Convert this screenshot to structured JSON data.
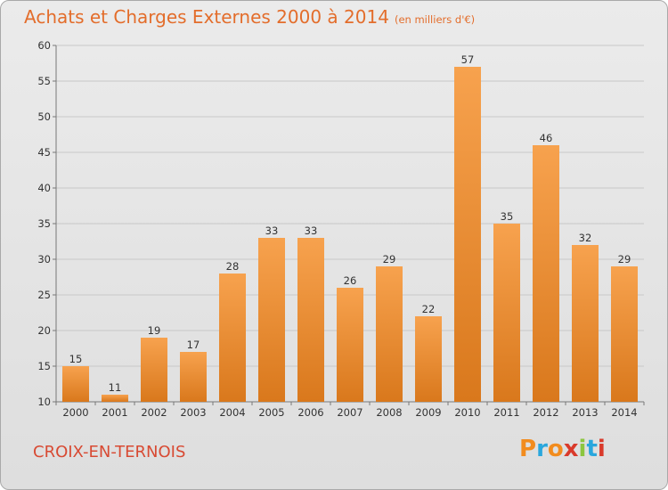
{
  "header": {
    "title": "Achats et Charges Externes 2000 à 2014",
    "unit": "(en milliers d'€)"
  },
  "footer": {
    "location": "CROIX-EN-TERNOIS",
    "logo_text": "Proxiti"
  },
  "colors": {
    "title": "#e36d2b",
    "location": "#d84a33",
    "bar_top": "#f7a24e",
    "bar_bottom": "#d9781c",
    "logo_letters": [
      "#f28c1e",
      "#2aa7dd",
      "#f28c1e",
      "#d93a2b",
      "#8cc63f",
      "#2aa7dd",
      "#d93a2b"
    ]
  },
  "chart_data": {
    "type": "bar",
    "categories": [
      "2000",
      "2001",
      "2002",
      "2003",
      "2004",
      "2005",
      "2006",
      "2007",
      "2008",
      "2009",
      "2010",
      "2011",
      "2012",
      "2013",
      "2014"
    ],
    "values": [
      15,
      11,
      19,
      17,
      28,
      33,
      33,
      26,
      29,
      22,
      57,
      35,
      46,
      32,
      29
    ],
    "title": "Achats et Charges Externes 2000 à 2014",
    "ylim": [
      10,
      60
    ],
    "yticks": [
      10,
      15,
      20,
      25,
      30,
      35,
      40,
      45,
      50,
      55,
      60
    ],
    "grid": true
  }
}
